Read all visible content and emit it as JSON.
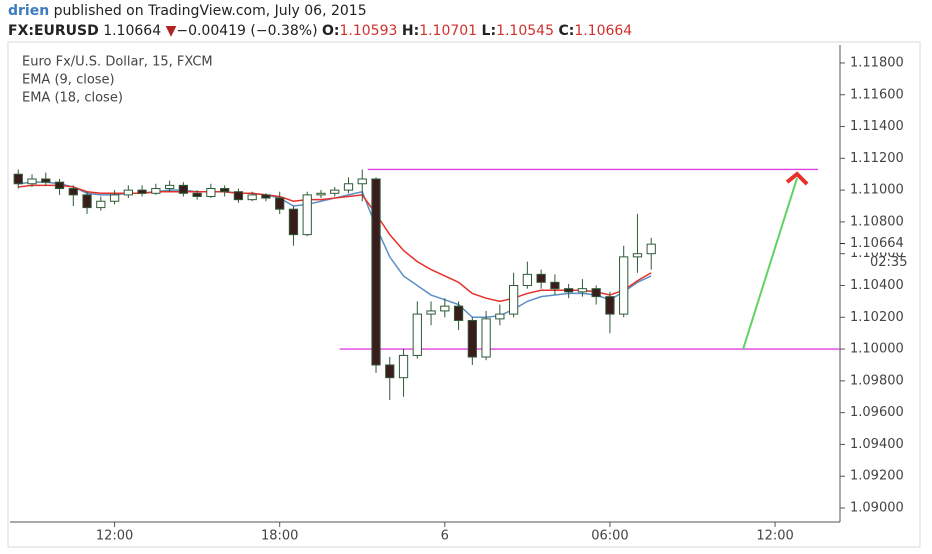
{
  "header": {
    "author": "drien",
    "published": "published on TradingView.com, July 06, 2015",
    "symbol": "FX:EURUSD",
    "last": "1.10664",
    "direction": "▼",
    "change": "−0.00419 (−0.38%)",
    "ohlc": [
      {
        "key": "O:",
        "value": "1.10593"
      },
      {
        "key": "H:",
        "value": "1.10701"
      },
      {
        "key": "L:",
        "value": "1.10545"
      },
      {
        "key": "C:",
        "value": "1.10664"
      }
    ]
  },
  "chart_data": {
    "type": "candlestick",
    "title": "Euro Fx/U.S. Dollar, 15, FXCM",
    "x": [
      8.5,
      9,
      9.5,
      10,
      10.5,
      11,
      11.5,
      12,
      12.5,
      13,
      13.5,
      14,
      14.5,
      15,
      15.5,
      16,
      16.5,
      17,
      17.5,
      18,
      18.5,
      19,
      19.5,
      20,
      20.5,
      21,
      21.5,
      22,
      22.5,
      23,
      23.5,
      24,
      24.5,
      25,
      25.5,
      26,
      26.5,
      27,
      27.5,
      28,
      28.5,
      29,
      29.5,
      30,
      30.5,
      31,
      31.5
    ],
    "open": [
      1.111,
      1.1104,
      1.1107,
      1.1105,
      1.1101,
      1.1097,
      1.1089,
      1.1093,
      1.1097,
      1.11,
      1.1098,
      1.1101,
      1.1103,
      1.1098,
      1.1096,
      1.1101,
      1.1099,
      1.1094,
      1.1097,
      1.1095,
      1.1088,
      1.1072,
      1.1097,
      1.1098,
      1.11,
      1.1104,
      1.1107,
      1.099,
      1.0982,
      1.0996,
      1.1022,
      1.1024,
      1.1027,
      1.1018,
      1.0995,
      1.1019,
      1.1022,
      1.104,
      1.1047,
      1.1042,
      1.1038,
      1.1036,
      1.1038,
      1.1033,
      1.1022,
      1.1058,
      1.106
    ],
    "high": [
      1.1113,
      1.111,
      1.1111,
      1.1107,
      1.1103,
      1.1099,
      1.1096,
      1.11,
      1.1103,
      1.1103,
      1.1104,
      1.1106,
      1.1105,
      1.11,
      1.1104,
      1.1103,
      1.1101,
      1.1099,
      1.1098,
      1.1099,
      1.109,
      1.1099,
      1.11,
      1.1102,
      1.1108,
      1.1113,
      1.1108,
      1.0995,
      1.1,
      1.103,
      1.103,
      1.1032,
      1.103,
      1.102,
      1.1024,
      1.1028,
      1.1048,
      1.1055,
      1.105,
      1.1047,
      1.1041,
      1.1044,
      1.104,
      1.1036,
      1.1065,
      1.1085,
      1.107
    ],
    "low": [
      1.1101,
      1.1102,
      1.1103,
      1.1097,
      1.109,
      1.1085,
      1.1087,
      1.1091,
      1.1095,
      1.1096,
      1.1097,
      1.1099,
      1.1096,
      1.1094,
      1.1095,
      1.1096,
      1.1092,
      1.1093,
      1.1093,
      1.1085,
      1.1065,
      1.1071,
      1.1095,
      1.1096,
      1.1098,
      1.1093,
      1.0985,
      1.0968,
      1.097,
      1.0994,
      1.1015,
      1.102,
      1.1012,
      1.099,
      1.0993,
      1.1015,
      1.102,
      1.1038,
      1.1038,
      1.1034,
      1.1032,
      1.1033,
      1.1028,
      1.101,
      1.102,
      1.1048,
      1.105
    ],
    "close": [
      1.1104,
      1.1107,
      1.1105,
      1.1101,
      1.1097,
      1.1089,
      1.1093,
      1.1097,
      1.11,
      1.1098,
      1.1101,
      1.1103,
      1.1098,
      1.1096,
      1.1101,
      1.1099,
      1.1094,
      1.1097,
      1.1095,
      1.1088,
      1.1072,
      1.1097,
      1.1098,
      1.11,
      1.1104,
      1.1107,
      1.099,
      1.0982,
      1.0996,
      1.1022,
      1.1024,
      1.1027,
      1.1018,
      1.0995,
      1.1019,
      1.1022,
      1.104,
      1.1047,
      1.1042,
      1.1038,
      1.1036,
      1.1038,
      1.1033,
      1.1022,
      1.1058,
      1.106,
      1.1066
    ],
    "up_color": "#ffffff",
    "down_color": "#3b1c1c",
    "edge_color": "#2f5a36",
    "series": [
      {
        "name": "EMA (9, close)",
        "color": "#5b8fc7",
        "values": [
          1.1104,
          1.1105,
          1.1105,
          1.1104,
          1.1102,
          1.1098,
          1.1097,
          1.1097,
          1.1098,
          1.1098,
          1.1099,
          1.11,
          1.11,
          1.1099,
          1.1099,
          1.1099,
          1.1098,
          1.1098,
          1.1097,
          1.1095,
          1.109,
          1.1091,
          1.1093,
          1.1095,
          1.1097,
          1.1099,
          1.1077,
          1.1058,
          1.1046,
          1.104,
          1.1034,
          1.1031,
          1.1028,
          1.102,
          1.102,
          1.1021,
          1.1025,
          1.103,
          1.1033,
          1.1034,
          1.1035,
          1.1035,
          1.1034,
          1.1031,
          1.1036,
          1.1042,
          1.1046
        ]
      },
      {
        "name": "EMA (18, close)",
        "color": "#e8302a",
        "values": [
          1.1102,
          1.1103,
          1.1103,
          1.1103,
          1.1102,
          1.1099,
          1.1098,
          1.1098,
          1.1098,
          1.1098,
          1.1099,
          1.1099,
          1.1099,
          1.1099,
          1.1099,
          1.1099,
          1.1098,
          1.1098,
          1.1097,
          1.1096,
          1.1093,
          1.1094,
          1.1094,
          1.1095,
          1.1096,
          1.1097,
          1.1085,
          1.1072,
          1.1062,
          1.1055,
          1.105,
          1.1046,
          1.1042,
          1.1035,
          1.1032,
          1.103,
          1.1032,
          1.1035,
          1.1037,
          1.1037,
          1.1037,
          1.1037,
          1.1036,
          1.1034,
          1.1037,
          1.1043,
          1.1048
        ]
      }
    ],
    "xlim": [
      8.2,
      38.36
    ],
    "ylim": [
      1.08912,
      1.11913
    ],
    "xticks": [
      {
        "value": 12,
        "label": "12:00"
      },
      {
        "value": 18,
        "label": "18:00"
      },
      {
        "value": 24,
        "label": "6"
      },
      {
        "value": 30,
        "label": "06:00"
      },
      {
        "value": 36,
        "label": "12:00"
      }
    ],
    "yticks": [
      {
        "value": 1.118,
        "label": "1.11800"
      },
      {
        "value": 1.116,
        "label": "1.11600"
      },
      {
        "value": 1.114,
        "label": "1.11400"
      },
      {
        "value": 1.112,
        "label": "1.11200"
      },
      {
        "value": 1.11,
        "label": "1.11000"
      },
      {
        "value": 1.108,
        "label": "1.10800"
      },
      {
        "value": 1.106,
        "label": "1.10600"
      },
      {
        "value": 1.104,
        "label": "1.10400"
      },
      {
        "value": 1.102,
        "label": "1.10200"
      },
      {
        "value": 1.1,
        "label": "1.10000"
      },
      {
        "value": 1.098,
        "label": "1.09800"
      },
      {
        "value": 1.096,
        "label": "1.09600"
      },
      {
        "value": 1.094,
        "label": "1.09400"
      },
      {
        "value": 1.092,
        "label": "1.09200"
      },
      {
        "value": 1.09,
        "label": "1.09000"
      }
    ],
    "last_price": {
      "value": 1.10664,
      "label": "1.10664"
    },
    "countdown": "02:35",
    "hlines": [
      {
        "value": 1.1113,
        "x": [
          21.2,
          37.56
        ]
      },
      {
        "value": 1.1,
        "x": [
          20.18,
          38.36
        ]
      }
    ],
    "hline_color": "#e040e0",
    "arrow": {
      "x": [
        34.84,
        36.8
      ],
      "y": [
        1.1,
        1.11076
      ],
      "color": "#5fd35f",
      "head_color": "#e8302a"
    }
  }
}
